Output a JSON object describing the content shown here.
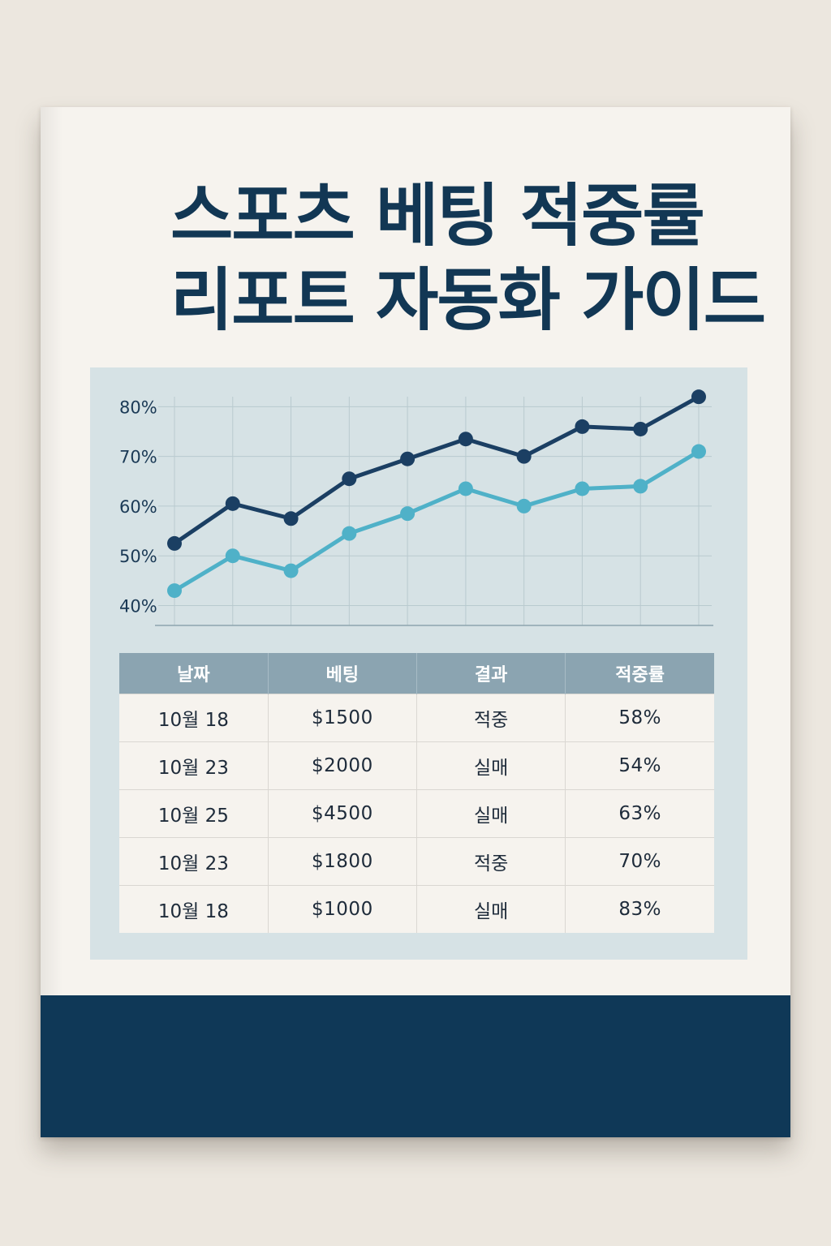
{
  "cover": {
    "title_line1": "스포츠 베팅 적중률",
    "title_line2": "리포트 자동화 가이드"
  },
  "colors": {
    "title": "#123754",
    "panel": "#d6e2e5",
    "table_header": "#8ba4b1",
    "band": "#0f3857",
    "series_dark": "#1b3f63",
    "series_light": "#4fb1c8"
  },
  "chart_data": {
    "type": "line",
    "x": [
      1,
      2,
      3,
      4,
      5,
      6,
      7,
      8,
      9,
      10
    ],
    "ylim": [
      36,
      83
    ],
    "yticks": [
      80,
      70,
      60,
      50,
      40
    ],
    "ytick_labels": [
      "80%",
      "70%",
      "60%",
      "50%",
      "40%"
    ],
    "grid": true,
    "series": [
      {
        "values": [
          52.5,
          60.5,
          57.5,
          65.5,
          69.5,
          73.5,
          70,
          76,
          75.5,
          82
        ]
      },
      {
        "values": [
          43,
          50,
          47,
          54.5,
          58.5,
          63.5,
          60,
          63.5,
          64,
          71
        ]
      }
    ]
  },
  "table": {
    "headers": [
      "날짜",
      "베팅",
      "결과",
      "적중률"
    ],
    "rows": [
      [
        "10월 18",
        "$1500",
        "적중",
        "58%"
      ],
      [
        "10월 23",
        "$2000",
        "실매",
        "54%"
      ],
      [
        "10월 25",
        "$4500",
        "실매",
        "63%"
      ],
      [
        "10월 23",
        "$1800",
        "적중",
        "70%"
      ],
      [
        "10월 18",
        "$1000",
        "실매",
        "83%"
      ]
    ]
  }
}
